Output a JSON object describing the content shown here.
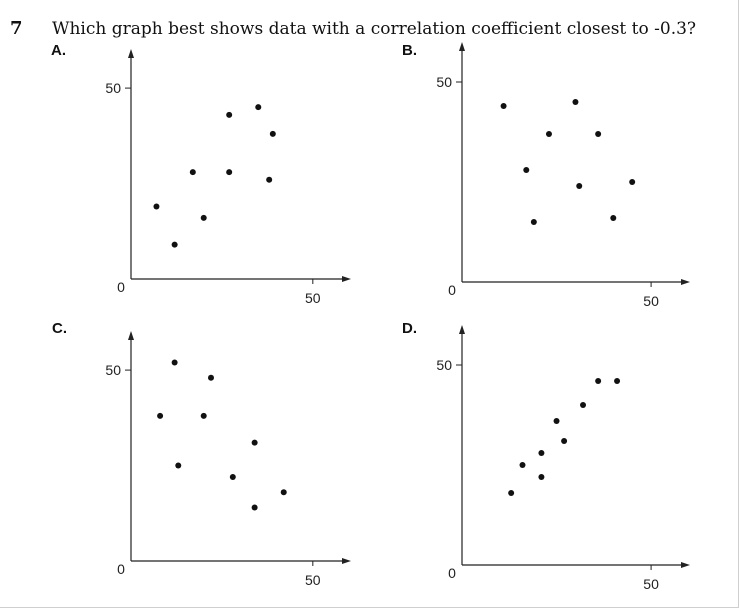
{
  "question": {
    "number": "7",
    "text": "Which graph best shows data with a correlation coefficient closest to -0.3?"
  },
  "colors": {
    "ink": "#111111",
    "axis": "#222222"
  },
  "chart_data": [
    {
      "label": "A.",
      "type": "scatter",
      "xlim": [
        0,
        55
      ],
      "ylim": [
        0,
        55
      ],
      "x_ticks": [
        {
          "value": 50,
          "label": "50"
        }
      ],
      "y_ticks": [
        {
          "value": 50,
          "label": "50"
        }
      ],
      "origin_label": "0",
      "points": [
        [
          7,
          19
        ],
        [
          12,
          9
        ],
        [
          17,
          28
        ],
        [
          20,
          16
        ],
        [
          27,
          28
        ],
        [
          27,
          43
        ],
        [
          35,
          45
        ],
        [
          38,
          26
        ],
        [
          39,
          38
        ]
      ]
    },
    {
      "label": "B.",
      "type": "scatter",
      "xlim": [
        0,
        55
      ],
      "ylim": [
        0,
        55
      ],
      "x_ticks": [
        {
          "value": 50,
          "label": "50"
        }
      ],
      "y_ticks": [
        {
          "value": 50,
          "label": "50"
        }
      ],
      "origin_label": "0",
      "points": [
        [
          11,
          44
        ],
        [
          17,
          28
        ],
        [
          19,
          15
        ],
        [
          23,
          37
        ],
        [
          30,
          45
        ],
        [
          31,
          24
        ],
        [
          36,
          37
        ],
        [
          40,
          16
        ],
        [
          45,
          25
        ]
      ]
    },
    {
      "label": "C.",
      "type": "scatter",
      "xlim": [
        0,
        55
      ],
      "ylim": [
        0,
        55
      ],
      "x_ticks": [
        {
          "value": 50,
          "label": "50"
        }
      ],
      "y_ticks": [
        {
          "value": 50,
          "label": "50"
        }
      ],
      "origin_label": "0",
      "points": [
        [
          8,
          38
        ],
        [
          12,
          52
        ],
        [
          13,
          25
        ],
        [
          20,
          38
        ],
        [
          22,
          48
        ],
        [
          28,
          22
        ],
        [
          34,
          14
        ],
        [
          34,
          31
        ],
        [
          42,
          18
        ]
      ]
    },
    {
      "label": "D.",
      "type": "scatter",
      "xlim": [
        0,
        55
      ],
      "ylim": [
        0,
        55
      ],
      "x_ticks": [
        {
          "value": 50,
          "label": "50"
        }
      ],
      "y_ticks": [
        {
          "value": 50,
          "label": "50"
        }
      ],
      "origin_label": "0",
      "points": [
        [
          13,
          18
        ],
        [
          16,
          25
        ],
        [
          21,
          22
        ],
        [
          21,
          28
        ],
        [
          25,
          36
        ],
        [
          27,
          31
        ],
        [
          32,
          40
        ],
        [
          36,
          46
        ],
        [
          41,
          46
        ]
      ]
    }
  ]
}
